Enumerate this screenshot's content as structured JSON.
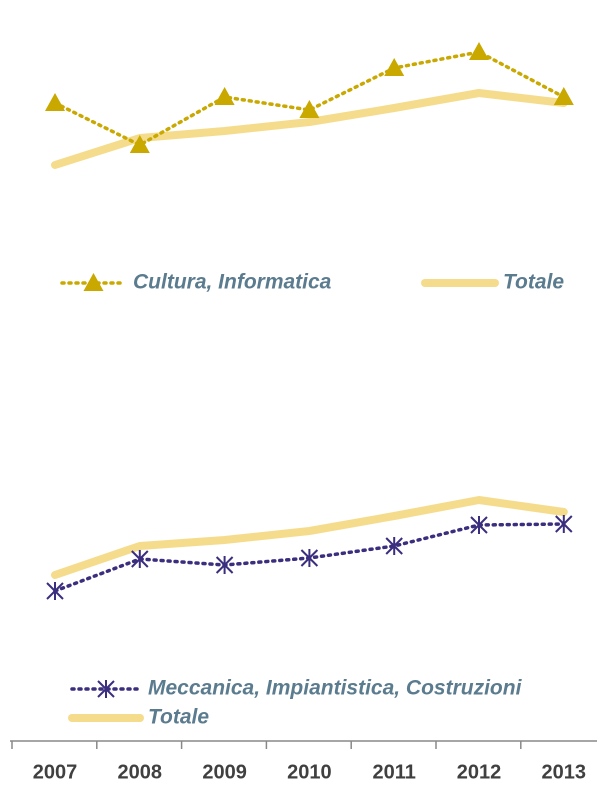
{
  "chart_data": [
    {
      "type": "line",
      "series": [
        {
          "name": "Cultura, Informatica",
          "color": "#c9a800",
          "marker": "triangle",
          "style": "dotted",
          "values": [
            97,
            55,
            103,
            90,
            132,
            148,
            103
          ]
        },
        {
          "name": "Totale",
          "color": "#f5dc8c",
          "style": "thick",
          "values": [
            35,
            62,
            69,
            78,
            92,
            107,
            97
          ]
        }
      ],
      "ylim": [
        0,
        180
      ]
    },
    {
      "type": "line",
      "categories": [
        "2007",
        "2008",
        "2009",
        "2010",
        "2011",
        "2012",
        "2013"
      ],
      "series": [
        {
          "name": "Meccanica, Impiantistica, Costruzioni",
          "color": "#3b2e7e",
          "marker": "star",
          "style": "dotted",
          "values": [
            29,
            61,
            55,
            62,
            74,
            95,
            96
          ]
        },
        {
          "name": "Totale",
          "color": "#f5dc8c",
          "style": "thick",
          "values": [
            45,
            74,
            80,
            89,
            104,
            120,
            108
          ]
        }
      ],
      "ylim": [
        0,
        180
      ]
    }
  ]
}
